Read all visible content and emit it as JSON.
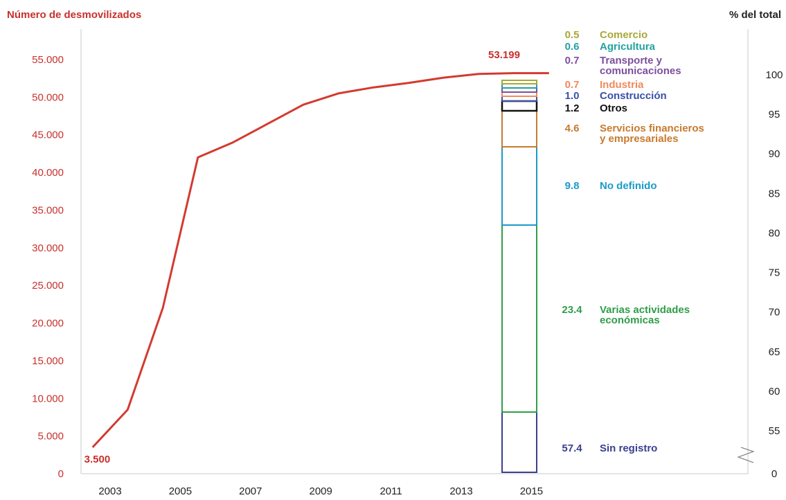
{
  "chart_data": {
    "type": "line",
    "left_axis": {
      "title": "Número de desmovilizados",
      "ticks": [
        "0",
        "5.000",
        "10.000",
        "15.000",
        "20.000",
        "25.000",
        "30.000",
        "35.000",
        "40.000",
        "45.000",
        "50.000",
        "55.000"
      ],
      "ylim": [
        0,
        55000
      ],
      "color": "#c8302c"
    },
    "right_axis": {
      "title": "% del total",
      "ticks": [
        "0",
        "55",
        "60",
        "65",
        "70",
        "75",
        "80",
        "85",
        "90",
        "95",
        "100"
      ],
      "break_between": [
        "0",
        "55"
      ]
    },
    "x_ticks": [
      "2003",
      "2005",
      "2007",
      "2009",
      "2011",
      "2013",
      "2015"
    ],
    "series": [
      {
        "color": "#d33a30",
        "points": [
          {
            "x": 2002.5,
            "y": 3500
          },
          {
            "x": 2003.5,
            "y": 8500
          },
          {
            "x": 2004.5,
            "y": 22000
          },
          {
            "x": 2005.5,
            "y": 42000
          },
          {
            "x": 2006.5,
            "y": 44000
          },
          {
            "x": 2007.5,
            "y": 46500
          },
          {
            "x": 2008.5,
            "y": 49000
          },
          {
            "x": 2009.5,
            "y": 50500
          },
          {
            "x": 2010.5,
            "y": 51300
          },
          {
            "x": 2011.5,
            "y": 51900
          },
          {
            "x": 2012.5,
            "y": 52600
          },
          {
            "x": 2013.5,
            "y": 53100
          },
          {
            "x": 2014.5,
            "y": 53199
          },
          {
            "x": 2015.5,
            "y": 53199
          }
        ]
      }
    ],
    "annotations": [
      {
        "text": "3.500",
        "x": 2002.5,
        "y": 3500
      },
      {
        "text": "53.199",
        "x": 2014.5,
        "y": 53199
      }
    ],
    "stacked_bar": {
      "year": "2015",
      "segments": [
        {
          "value": "57.4",
          "label": "Sin registro",
          "pct": 57.4,
          "color": "#3a3f8f"
        },
        {
          "value": "23.4",
          "label": "Varias actividades económicas",
          "pct": 23.4,
          "color": "#2e9e48"
        },
        {
          "value": "9.8",
          "label": "No definido",
          "pct": 9.8,
          "color": "#1a9bc7"
        },
        {
          "value": "4.6",
          "label": "Servicios financieros y empresariales",
          "pct": 4.6,
          "color": "#c77a2e"
        },
        {
          "value": "1.2",
          "label": "Otros",
          "pct": 1.2,
          "color": "#111111"
        },
        {
          "value": "1.0",
          "label": "Construcción",
          "pct": 1.0,
          "color": "#3a4fa8"
        },
        {
          "value": "0.7",
          "label": "Industria",
          "pct": 0.7,
          "color": "#f08a5d"
        },
        {
          "value": "0.7",
          "label": "Transporte y comunicaciones",
          "pct": 0.7,
          "color": "#7b4f9e"
        },
        {
          "value": "0.6",
          "label": "Agricultura",
          "pct": 0.6,
          "color": "#22a3a0"
        },
        {
          "value": "0.5",
          "label": "Comercio",
          "pct": 0.5,
          "color": "#a8a838"
        }
      ]
    }
  }
}
